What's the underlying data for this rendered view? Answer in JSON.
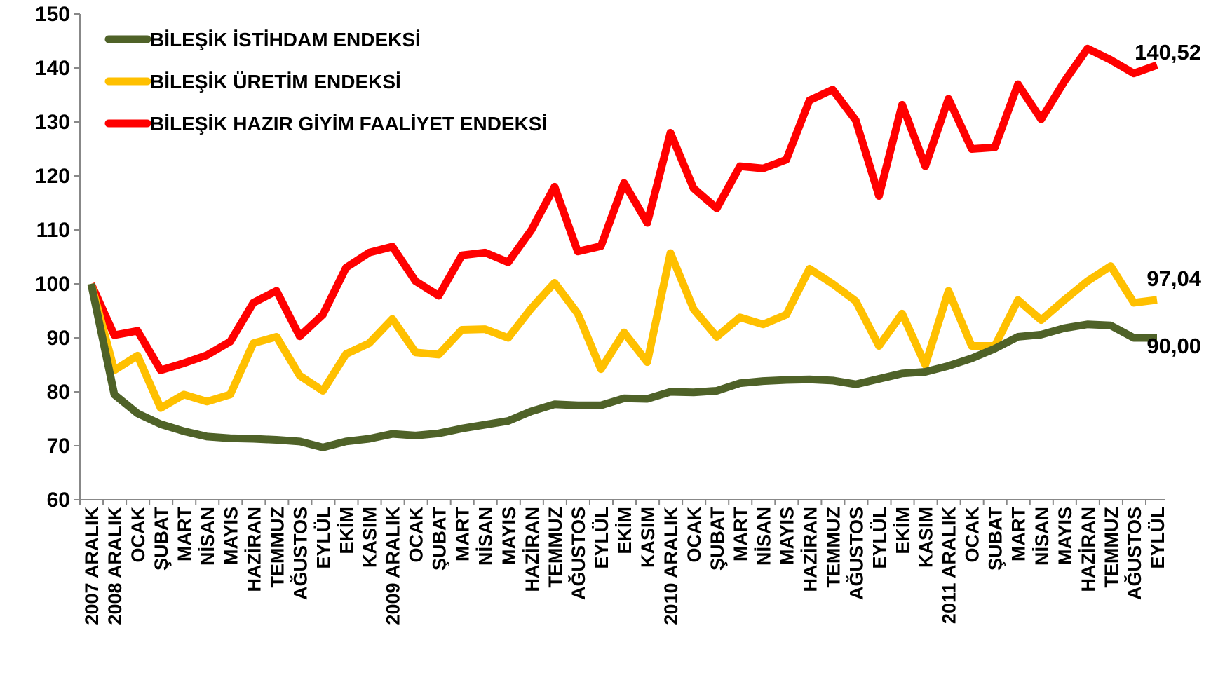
{
  "chart_data": {
    "type": "line",
    "categories": [
      "2007 ARALIK",
      "2008 ARALIK",
      "OCAK",
      "ŞUBAT",
      "MART",
      "NİSAN",
      "MAYIS",
      "HAZİRAN",
      "TEMMUZ",
      "AĞUSTOS",
      "EYLÜL",
      "EKİM",
      "KASIM",
      "2009 ARALIK",
      "OCAK",
      "ŞUBAT",
      "MART",
      "NİSAN",
      "MAYIS",
      "HAZİRAN",
      "TEMMUZ",
      "AĞUSTOS",
      "EYLÜL",
      "EKİM",
      "KASIM",
      "2010 ARALIK",
      "OCAK",
      "ŞUBAT",
      "MART",
      "NİSAN",
      "MAYIS",
      "HAZİRAN",
      "TEMMUZ",
      "AĞUSTOS",
      "EYLÜL",
      "EKİM",
      "KASIM",
      "2011 ARALIK",
      "OCAK",
      "ŞUBAT",
      "MART",
      "NİSAN",
      "MAYIS",
      "HAZİRAN",
      "TEMMUZ",
      "AĞUSTOS",
      "EYLÜL"
    ],
    "series": [
      {
        "name": "BİLEŞİK İSTİHDAM ENDEKSİ",
        "color": "#4f6228",
        "values": [
          100,
          79.5,
          76,
          74,
          72.7,
          71.7,
          71.4,
          71.3,
          71.1,
          70.8,
          69.7,
          70.8,
          71.3,
          72.2,
          71.9,
          72.3,
          73.2,
          73.9,
          74.6,
          76.4,
          77.7,
          77.5,
          77.5,
          78.8,
          78.7,
          80,
          79.9,
          80.2,
          81.6,
          82,
          82.2,
          82.3,
          82.1,
          81.4,
          82.4,
          83.4,
          83.7,
          84.8,
          86.2,
          88,
          90.2,
          90.6,
          91.8,
          92.5,
          92.3,
          90,
          90.0
        ],
        "value_labels": [
          null,
          null,
          null,
          null,
          null,
          null,
          null,
          null,
          null,
          null,
          null,
          null,
          null,
          null,
          null,
          null,
          null,
          null,
          null,
          null,
          null,
          null,
          null,
          null,
          null,
          null,
          null,
          null,
          null,
          null,
          null,
          null,
          null,
          null,
          null,
          null,
          null,
          null,
          null,
          null,
          null,
          null,
          null,
          null,
          null,
          null,
          "90,00"
        ]
      },
      {
        "name": "BİLEŞİK ÜRETİM ENDEKSİ",
        "color": "#ffc000",
        "values": [
          100,
          84,
          86.7,
          77,
          79.5,
          78.2,
          79.5,
          89,
          90.2,
          83,
          80.2,
          87,
          89,
          93.5,
          87.3,
          86.9,
          91.5,
          91.6,
          90,
          95.5,
          100.2,
          94.5,
          84.2,
          91,
          85.5,
          105.7,
          95.3,
          90.2,
          93.8,
          92.5,
          94.3,
          102.8,
          100,
          96.8,
          88.5,
          94.5,
          85,
          98.7,
          88.5,
          88.5,
          97,
          93.3,
          97,
          100.5,
          103.3,
          96.5,
          97.04
        ],
        "value_labels": [
          null,
          null,
          null,
          null,
          null,
          null,
          null,
          null,
          null,
          null,
          null,
          null,
          null,
          null,
          null,
          null,
          null,
          null,
          null,
          null,
          null,
          null,
          null,
          null,
          null,
          null,
          null,
          null,
          null,
          null,
          null,
          null,
          null,
          null,
          null,
          null,
          null,
          null,
          null,
          null,
          null,
          null,
          null,
          null,
          null,
          null,
          "97,04"
        ]
      },
      {
        "name": "BİLEŞİK HAZIR GİYİM FAALİYET ENDEKSİ",
        "color": "#ff0000",
        "values": [
          100,
          90.5,
          91.3,
          84,
          85.3,
          86.8,
          89.3,
          96.5,
          98.7,
          90.3,
          94.3,
          103,
          105.8,
          106.9,
          100.5,
          97.8,
          105.3,
          105.8,
          104,
          110,
          118,
          106,
          107,
          118.7,
          111.3,
          128,
          117.7,
          114,
          121.8,
          121.4,
          123,
          134,
          136,
          130.3,
          116.3,
          133.2,
          121.8,
          134.3,
          125,
          125.3,
          137,
          130.5,
          137.5,
          143.6,
          141.5,
          139,
          140.52
        ],
        "value_labels": [
          null,
          null,
          null,
          null,
          null,
          null,
          null,
          null,
          null,
          null,
          null,
          null,
          null,
          null,
          null,
          null,
          null,
          null,
          null,
          null,
          null,
          null,
          null,
          null,
          null,
          null,
          null,
          null,
          null,
          null,
          null,
          null,
          null,
          null,
          null,
          null,
          null,
          null,
          null,
          null,
          null,
          null,
          null,
          null,
          null,
          null,
          "140,52"
        ]
      }
    ],
    "ylim": [
      60,
      150
    ],
    "yticks": [
      60,
      70,
      80,
      90,
      100,
      110,
      120,
      130,
      140,
      150
    ],
    "legend": "upper left"
  }
}
